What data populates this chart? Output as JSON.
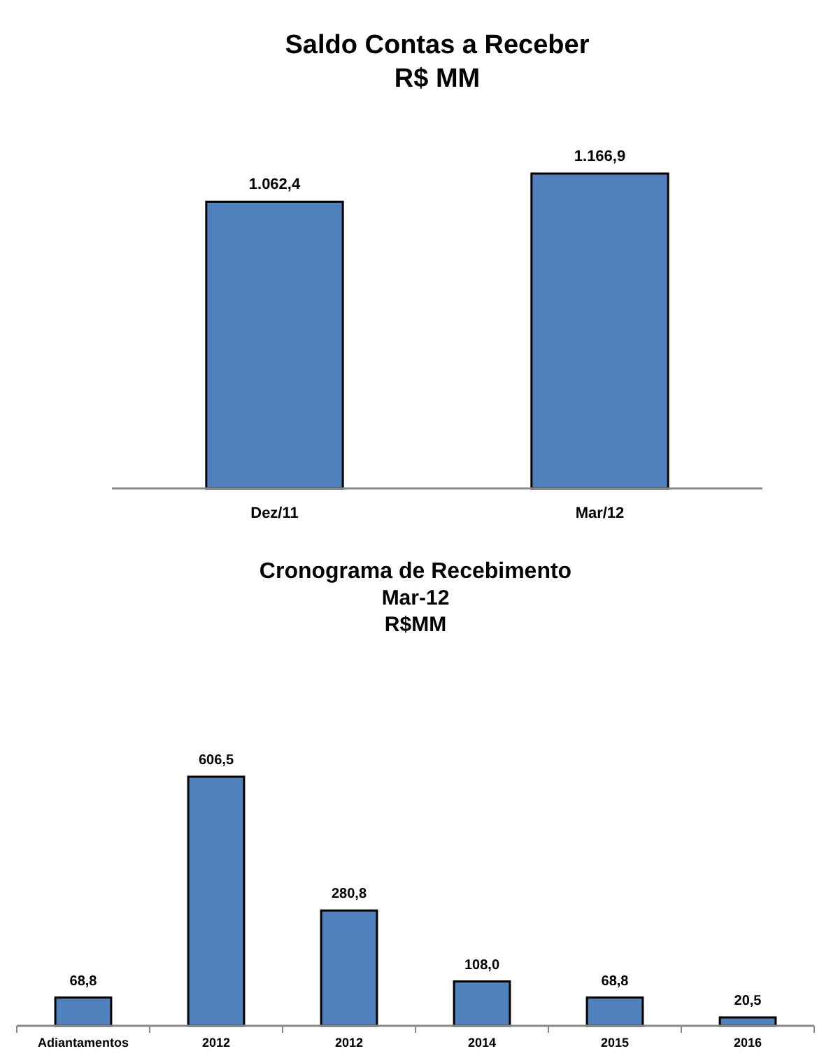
{
  "chart_data": [
    {
      "type": "bar",
      "title": "Saldo Contas a Receber",
      "subtitle": "R$ MM",
      "categories": [
        "Dez/11",
        "Mar/12"
      ],
      "values": [
        1062.4,
        1166.9
      ],
      "value_labels": [
        "1.062,4",
        "1.166,9"
      ],
      "color": "#4f81bd"
    },
    {
      "type": "bar",
      "title": "Cronograma de Recebimento",
      "subtitle": "Mar-12\nR$MM",
      "categories": [
        "Adiantamentos",
        "2012",
        "2012",
        "2014",
        "2015",
        "2016"
      ],
      "values": [
        68.8,
        606.5,
        280.8,
        108.0,
        68.8,
        20.5
      ],
      "value_labels": [
        "68,8",
        "606,5",
        "280,8",
        "108,0",
        "68,8",
        "20,5"
      ],
      "color": "#4f81bd"
    }
  ]
}
